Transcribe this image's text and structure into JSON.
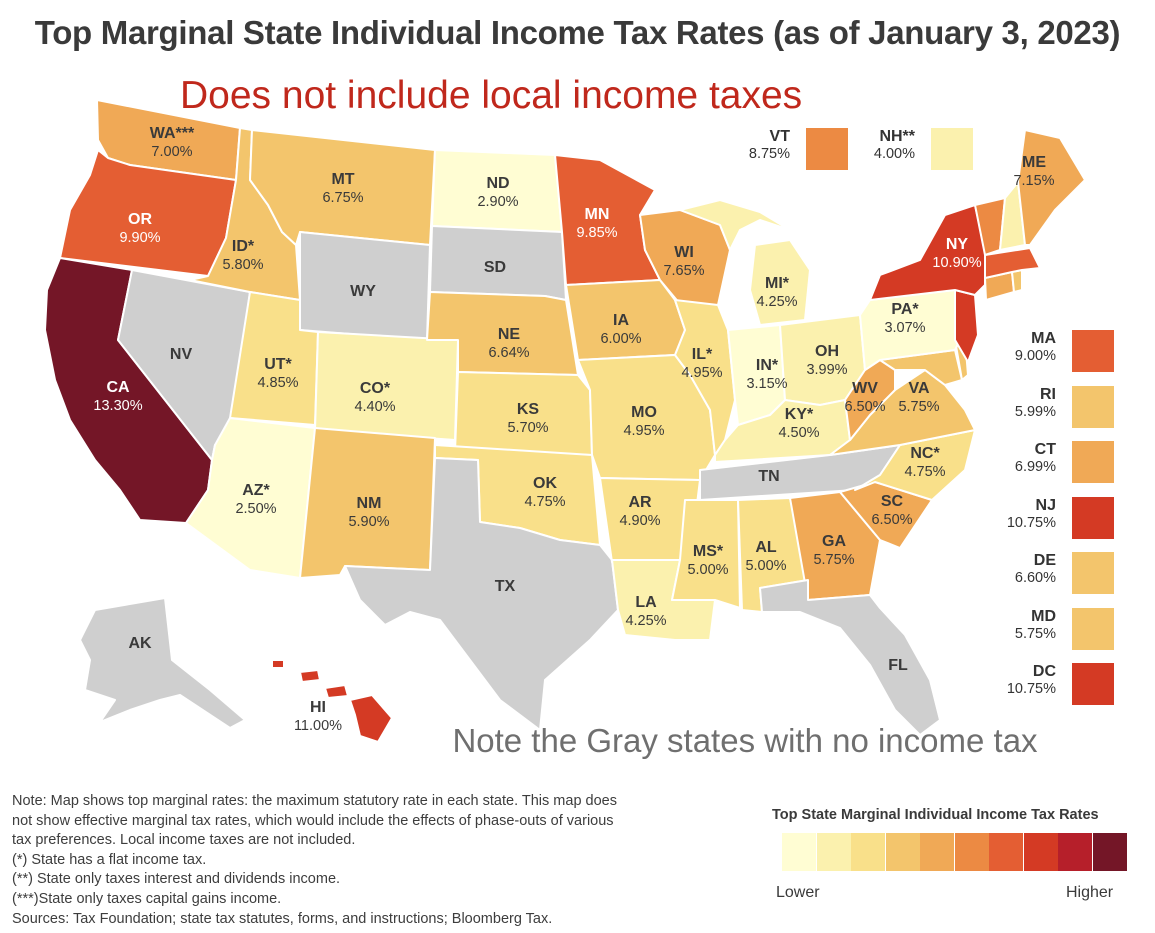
{
  "title": "Top Marginal State Individual Income Tax Rates (as of January 3, 2023)",
  "subtitle": "Does not include local income taxes",
  "note_gray": "Note the Gray states with no income tax",
  "colors": {
    "no_tax": "#cfcfcf",
    "scale": [
      "#fffdd3",
      "#fbf1ae",
      "#f9e08a",
      "#f3c56c",
      "#f0a956",
      "#ec8a43",
      "#e45e33",
      "#d43a24",
      "#b61f2a",
      "#741627"
    ],
    "border": "#ffffff"
  },
  "states": [
    {
      "abbr": "WA***",
      "rate": "7.00%",
      "color": "#f0a956"
    },
    {
      "abbr": "OR",
      "rate": "9.90%",
      "color": "#e45e33"
    },
    {
      "abbr": "CA",
      "rate": "13.30%",
      "color": "#741627"
    },
    {
      "abbr": "NV",
      "rate": "",
      "color": "#cfcfcf"
    },
    {
      "abbr": "ID*",
      "rate": "5.80%",
      "color": "#f3c56c"
    },
    {
      "abbr": "MT",
      "rate": "6.75%",
      "color": "#f3c56c"
    },
    {
      "abbr": "WY",
      "rate": "",
      "color": "#cfcfcf"
    },
    {
      "abbr": "UT*",
      "rate": "4.85%",
      "color": "#f9e08a"
    },
    {
      "abbr": "AZ*",
      "rate": "2.50%",
      "color": "#fffdd3"
    },
    {
      "abbr": "CO*",
      "rate": "4.40%",
      "color": "#fbf1ae"
    },
    {
      "abbr": "NM",
      "rate": "5.90%",
      "color": "#f3c56c"
    },
    {
      "abbr": "ND",
      "rate": "2.90%",
      "color": "#fffdd3"
    },
    {
      "abbr": "SD",
      "rate": "",
      "color": "#cfcfcf"
    },
    {
      "abbr": "NE",
      "rate": "6.64%",
      "color": "#f3c56c"
    },
    {
      "abbr": "KS",
      "rate": "5.70%",
      "color": "#f9e08a"
    },
    {
      "abbr": "OK",
      "rate": "4.75%",
      "color": "#f9e08a"
    },
    {
      "abbr": "TX",
      "rate": "",
      "color": "#cfcfcf"
    },
    {
      "abbr": "MN",
      "rate": "9.85%",
      "color": "#e45e33"
    },
    {
      "abbr": "IA",
      "rate": "6.00%",
      "color": "#f3c56c"
    },
    {
      "abbr": "MO",
      "rate": "4.95%",
      "color": "#f9e08a"
    },
    {
      "abbr": "AR",
      "rate": "4.90%",
      "color": "#f9e08a"
    },
    {
      "abbr": "LA",
      "rate": "4.25%",
      "color": "#fbf1ae"
    },
    {
      "abbr": "WI",
      "rate": "7.65%",
      "color": "#f0a956"
    },
    {
      "abbr": "IL*",
      "rate": "4.95%",
      "color": "#f9e08a"
    },
    {
      "abbr": "MI*",
      "rate": "4.25%",
      "color": "#fbf1ae"
    },
    {
      "abbr": "IN*",
      "rate": "3.15%",
      "color": "#fffdd3"
    },
    {
      "abbr": "OH",
      "rate": "3.99%",
      "color": "#fbf1ae"
    },
    {
      "abbr": "KY*",
      "rate": "4.50%",
      "color": "#fbf1ae"
    },
    {
      "abbr": "TN",
      "rate": "",
      "color": "#cfcfcf"
    },
    {
      "abbr": "MS*",
      "rate": "5.00%",
      "color": "#f9e08a"
    },
    {
      "abbr": "AL",
      "rate": "5.00%",
      "color": "#f9e08a"
    },
    {
      "abbr": "GA",
      "rate": "5.75%",
      "color": "#f0a956"
    },
    {
      "abbr": "FL",
      "rate": "",
      "color": "#cfcfcf"
    },
    {
      "abbr": "SC",
      "rate": "6.50%",
      "color": "#f0a956"
    },
    {
      "abbr": "NC*",
      "rate": "4.75%",
      "color": "#f9e08a"
    },
    {
      "abbr": "VA",
      "rate": "5.75%",
      "color": "#f3c56c"
    },
    {
      "abbr": "WV",
      "rate": "6.50%",
      "color": "#f0a956"
    },
    {
      "abbr": "PA*",
      "rate": "3.07%",
      "color": "#fffdd3"
    },
    {
      "abbr": "NY",
      "rate": "10.90%",
      "color": "#d43a24"
    },
    {
      "abbr": "ME",
      "rate": "7.15%",
      "color": "#f0a956"
    },
    {
      "abbr": "AK",
      "rate": "",
      "color": "#cfcfcf"
    },
    {
      "abbr": "HI",
      "rate": "11.00%",
      "color": "#d43a24"
    }
  ],
  "top_boxes": [
    {
      "abbr": "VT",
      "rate": "8.75%",
      "color": "#ec8a43"
    },
    {
      "abbr": "NH**",
      "rate": "4.00%",
      "color": "#fbf1ae"
    }
  ],
  "side_boxes": [
    {
      "abbr": "MA",
      "rate": "9.00%",
      "color": "#e45e33"
    },
    {
      "abbr": "RI",
      "rate": "5.99%",
      "color": "#f3c56c"
    },
    {
      "abbr": "CT",
      "rate": "6.99%",
      "color": "#f0a956"
    },
    {
      "abbr": "NJ",
      "rate": "10.75%",
      "color": "#d43a24"
    },
    {
      "abbr": "DE",
      "rate": "6.60%",
      "color": "#f3c56c"
    },
    {
      "abbr": "MD",
      "rate": "5.75%",
      "color": "#f3c56c"
    },
    {
      "abbr": "DC",
      "rate": "10.75%",
      "color": "#d43a24"
    }
  ],
  "legend": {
    "title": "Top State Marginal Individual Income Tax Rates",
    "lower": "Lower",
    "higher": "Higher"
  },
  "footnotes": [
    "Note: Map shows top marginal rates: the maximum statutory rate in each state. This map does",
    "not show effective marginal tax rates, which would include the effects of phase-outs of various",
    "tax preferences. Local income taxes are not included.",
    "(*) State has a flat income tax.",
    "(**) State only taxes interest and dividends income.",
    "(***)State only taxes capital gains income.",
    "Sources: Tax Foundation; state tax statutes, forms, and instructions; Bloomberg Tax."
  ]
}
